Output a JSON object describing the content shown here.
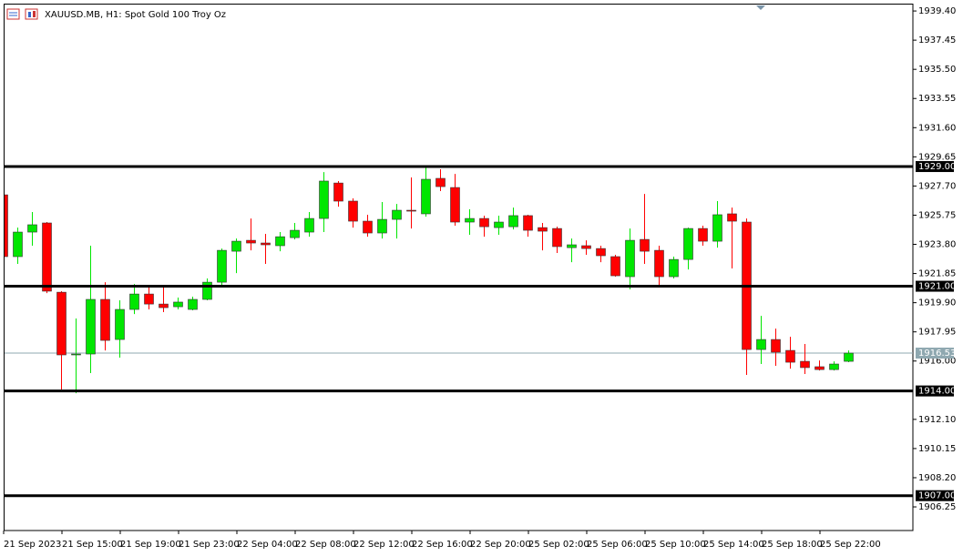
{
  "chart_data": {
    "type": "candlestick",
    "title": "XAUUSD.MB, H1:  Spot Gold 100 Troy Oz",
    "categories": [
      "21 Sep 2023",
      null,
      null,
      null,
      "21 Sep 15:00",
      null,
      null,
      null,
      "21 Sep 19:00",
      null,
      null,
      null,
      "21 Sep 23:00",
      null,
      null,
      null,
      "22 Sep 04:00",
      null,
      null,
      null,
      "22 Sep 08:00",
      null,
      null,
      null,
      "22 Sep 12:00",
      null,
      null,
      null,
      "22 Sep 16:00",
      null,
      null,
      null,
      "22 Sep 20:00",
      null,
      null,
      null,
      "25 Sep 02:00",
      null,
      null,
      null,
      "25 Sep 06:00",
      null,
      null,
      null,
      "25 Sep 10:00",
      null,
      null,
      null,
      "25 Sep 14:00",
      null,
      null,
      null,
      "25 Sep 18:00",
      null,
      null,
      null,
      "25 Sep 22:00",
      null,
      null
    ],
    "open": [
      1927.11,
      1922.98,
      1924.62,
      1925.23,
      1920.6,
      1916.41,
      1916.47,
      1920.12,
      1917.44,
      1919.45,
      1920.48,
      1919.81,
      1919.63,
      1919.45,
      1920.12,
      1921.27,
      1923.34,
      1924.07,
      1923.89,
      1923.71,
      1924.25,
      1924.62,
      1925.53,
      1927.9,
      1926.69,
      1925.35,
      1924.56,
      1925.47,
      1926.08,
      1925.84,
      1928.21,
      1927.6,
      1925.29,
      1925.53,
      1924.92,
      1924.98,
      1925.72,
      1924.92,
      1924.86,
      1923.58,
      1923.71,
      1923.52,
      1922.98,
      1921.64,
      1924.13,
      1923.4,
      1921.64,
      1922.79,
      1924.86,
      1924.01,
      1925.84,
      1925.29,
      1916.77,
      1917.44,
      1916.71,
      1915.98,
      1915.62,
      1915.43,
      1915.98
    ],
    "high": [
      1927.3,
      1924.92,
      1925.96,
      1925.29,
      1920.67,
      1918.84,
      1923.71,
      1921.27,
      1920.06,
      1921.15,
      1920.91,
      1920.91,
      1920.24,
      1920.3,
      1921.52,
      1923.52,
      1924.19,
      1925.53,
      1924.5,
      1924.62,
      1925.23,
      1925.96,
      1928.63,
      1928.03,
      1926.87,
      1925.78,
      1926.63,
      1926.5,
      1928.27,
      1929.0,
      1928.82,
      1928.51,
      1926.14,
      1925.72,
      1925.72,
      1926.26,
      1925.78,
      1925.23,
      1924.98,
      1924.19,
      1924.07,
      1923.71,
      1923.1,
      1924.86,
      1927.17,
      1923.71,
      1922.98,
      1924.92,
      1925.05,
      1926.69,
      1926.26,
      1925.53,
      1919.02,
      1918.17,
      1917.62,
      1917.14,
      1916.04,
      1915.98,
      1916.71
    ],
    "low": [
      1922.8,
      1922.49,
      1923.71,
      1920.54,
      1914.1,
      1913.85,
      1915.19,
      1916.71,
      1916.23,
      1919.14,
      1919.45,
      1919.27,
      1919.45,
      1919.39,
      1920.06,
      1921.09,
      1921.88,
      1923.4,
      1922.49,
      1923.34,
      1924.13,
      1924.31,
      1924.62,
      1926.32,
      1924.92,
      1924.31,
      1924.19,
      1924.19,
      1924.86,
      1925.65,
      1927.36,
      1925.05,
      1924.44,
      1924.31,
      1924.44,
      1924.8,
      1924.31,
      1923.4,
      1923.22,
      1922.61,
      1923.1,
      1922.61,
      1921.64,
      1920.79,
      1922.49,
      1920.97,
      1921.52,
      1922.12,
      1923.71,
      1923.58,
      1922.19,
      1915.07,
      1915.8,
      1915.68,
      1915.49,
      1915.13,
      1915.37,
      1915.37,
      1915.92
    ],
    "close": [
      1922.98,
      1924.62,
      1925.11,
      1920.67,
      1916.41,
      1916.47,
      1920.12,
      1917.38,
      1919.45,
      1920.48,
      1919.81,
      1919.57,
      1919.94,
      1920.12,
      1921.27,
      1923.4,
      1924.01,
      1923.89,
      1923.77,
      1924.31,
      1924.74,
      1925.53,
      1928.03,
      1926.69,
      1925.35,
      1924.56,
      1925.47,
      1926.08,
      1926.02,
      1928.15,
      1927.66,
      1925.29,
      1925.53,
      1924.98,
      1925.29,
      1925.72,
      1924.74,
      1924.68,
      1923.65,
      1923.77,
      1923.52,
      1923.04,
      1921.7,
      1924.07,
      1923.34,
      1921.64,
      1922.79,
      1924.86,
      1924.01,
      1925.78,
      1925.35,
      1916.77,
      1917.44,
      1916.59,
      1915.92,
      1915.56,
      1915.43,
      1915.8,
      1916.53
    ],
    "up_color": "#00e600",
    "down_color": "#ff0000",
    "ylim": [
      1904.67,
      1939.83
    ],
    "yticks": [
      {
        "value": 1939.4,
        "label": "1939.40"
      },
      {
        "value": 1937.45,
        "label": "1937.45"
      },
      {
        "value": 1935.5,
        "label": "1935.50"
      },
      {
        "value": 1933.55,
        "label": "1933.55"
      },
      {
        "value": 1931.6,
        "label": "1931.60"
      },
      {
        "value": 1929.65,
        "label": "1929.65"
      },
      {
        "value": 1927.7,
        "label": "1927.70"
      },
      {
        "value": 1925.75,
        "label": "1925.75"
      },
      {
        "value": 1923.8,
        "label": "1923.80"
      },
      {
        "value": 1921.85,
        "label": "1921.85"
      },
      {
        "value": 1919.9,
        "label": "1919.90"
      },
      {
        "value": 1917.95,
        "label": "1917.95"
      },
      {
        "value": 1916.0,
        "label": "1916.00"
      },
      {
        "value": 1912.1,
        "label": "1912.10"
      },
      {
        "value": 1910.15,
        "label": "1910.15"
      },
      {
        "value": 1908.2,
        "label": "1908.20"
      },
      {
        "value": 1906.25,
        "label": "1906.25"
      }
    ],
    "levels": [
      {
        "value": 1929,
        "label": "1929.00"
      },
      {
        "value": 1921,
        "label": "1921.00"
      },
      {
        "value": 1914,
        "label": "1914.00"
      },
      {
        "value": 1907,
        "label": "1907.00"
      }
    ],
    "price_line": 1916.53
  }
}
